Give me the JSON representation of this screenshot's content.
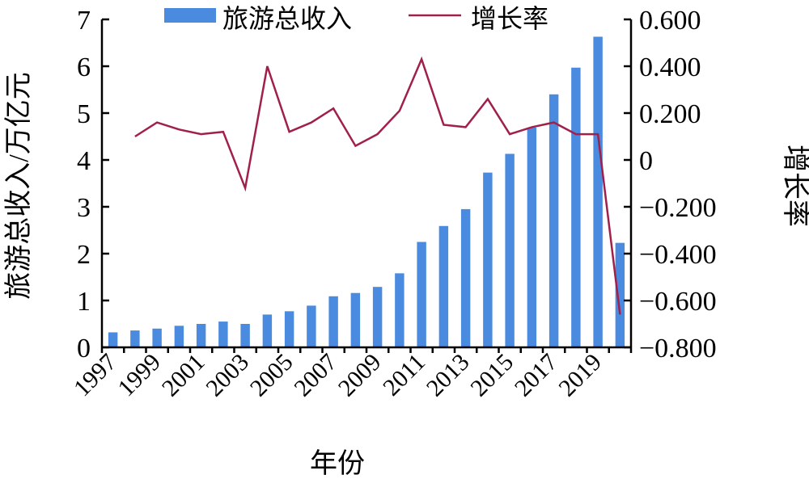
{
  "chart_data": {
    "type": "bar+line",
    "title": "",
    "xlabel": "年份",
    "ylabel_left": "旅游总收入/万亿元",
    "ylabel_right": "增长率",
    "years": [
      1997,
      1998,
      1999,
      2000,
      2001,
      2002,
      2003,
      2004,
      2005,
      2006,
      2007,
      2008,
      2009,
      2010,
      2011,
      2012,
      2013,
      2014,
      2015,
      2016,
      2017,
      2018,
      2019,
      2020
    ],
    "x_tick_labels": [
      "1997",
      "1999",
      "2001",
      "2003",
      "2005",
      "2007",
      "2009",
      "2011",
      "2013",
      "2015",
      "2017",
      "2019"
    ],
    "left_axis": {
      "min": 0,
      "max": 7,
      "ticks": [
        "0",
        "1",
        "2",
        "3",
        "4",
        "5",
        "6",
        "7"
      ]
    },
    "right_axis": {
      "min": -0.8,
      "max": 0.6,
      "ticks": [
        "−0.800",
        "−0.600",
        "−0.400",
        "−0.200",
        "0",
        "0.200",
        "0.400",
        "0.600"
      ]
    },
    "series": [
      {
        "name": "旅游总收入",
        "kind": "bar",
        "axis": "left",
        "color": "#4a8be0",
        "values": [
          0.32,
          0.36,
          0.4,
          0.46,
          0.5,
          0.55,
          0.5,
          0.7,
          0.77,
          0.89,
          1.09,
          1.16,
          1.29,
          1.58,
          2.25,
          2.59,
          2.95,
          3.73,
          4.13,
          4.69,
          5.4,
          5.97,
          6.63,
          2.23
        ]
      },
      {
        "name": "增长率",
        "kind": "line",
        "axis": "right",
        "color": "#a0204a",
        "values": [
          null,
          0.1,
          0.16,
          0.13,
          0.11,
          0.12,
          -0.12,
          0.4,
          0.12,
          0.16,
          0.22,
          0.06,
          0.11,
          0.21,
          0.43,
          0.15,
          0.14,
          0.26,
          0.11,
          0.14,
          0.16,
          0.11,
          0.11,
          -0.66
        ]
      }
    ],
    "legend_position": "top-center",
    "grid": false
  }
}
